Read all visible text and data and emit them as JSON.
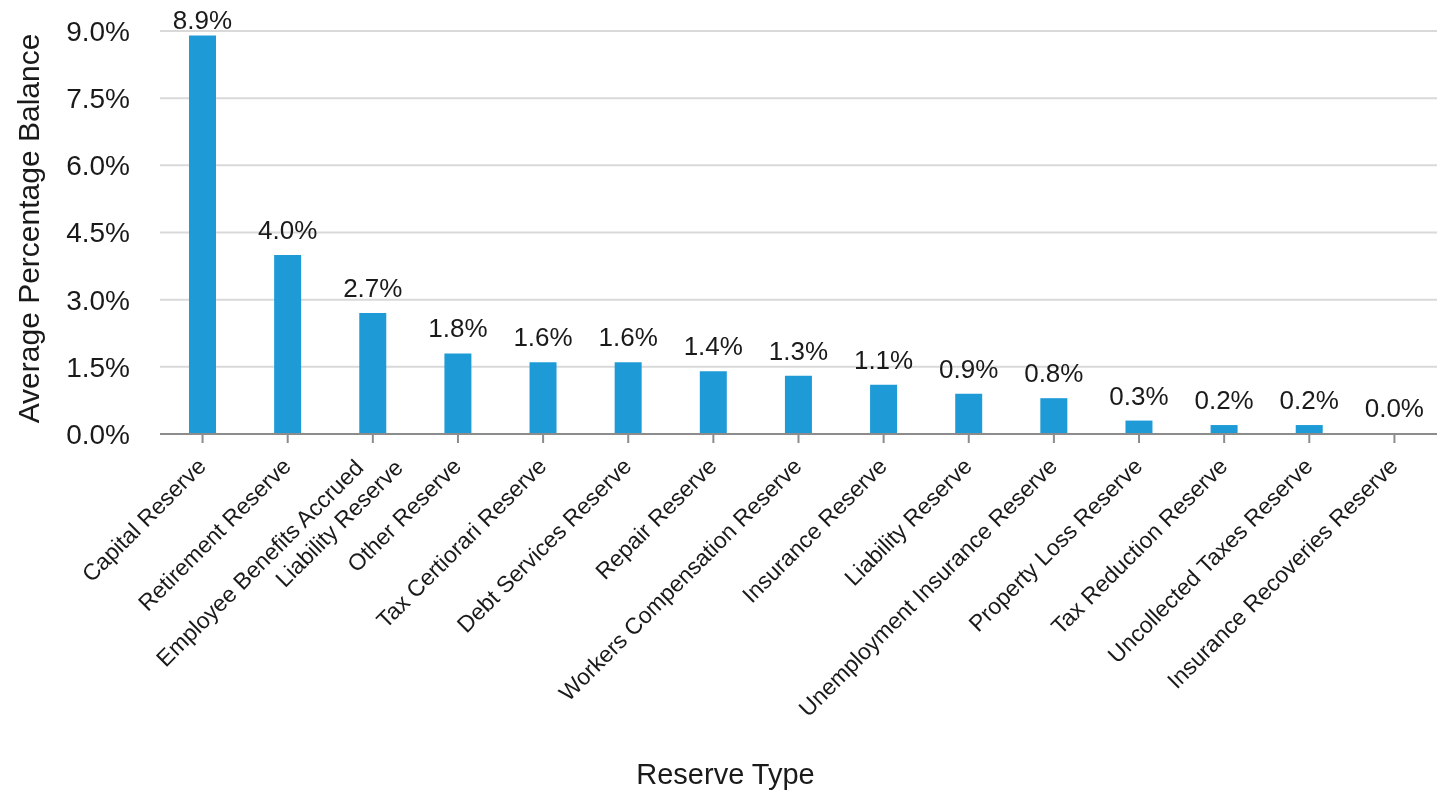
{
  "chart_data": {
    "type": "bar",
    "xlabel": "Reserve Type",
    "ylabel": "Average Percentage Balance",
    "categories": [
      "Capital Reserve",
      "Retirement Reserve",
      "Employee Benefits Accrued\nLiability Reserve",
      "Other Reserve",
      "Tax Certiorari Reserve",
      "Debt Services Reserve",
      "Repair Reserve",
      "Workers Compensation Reserve",
      "Insurance Reserve",
      "Liability Reserve",
      "Unemployment Insurance Reserve",
      "Property Loss Reserve",
      "Tax Reduction Reserve",
      "Uncollected Taxes Reserve",
      "Insurance Recoveries Reserve"
    ],
    "values": [
      8.9,
      4.0,
      2.7,
      1.8,
      1.6,
      1.6,
      1.4,
      1.3,
      1.1,
      0.9,
      0.8,
      0.3,
      0.2,
      0.2,
      0.02
    ],
    "value_labels": [
      "8.9%",
      "4.0%",
      "2.7%",
      "1.8%",
      "1.6%",
      "1.6%",
      "1.4%",
      "1.3%",
      "1.1%",
      "0.9%",
      "0.8%",
      "0.3%",
      "0.2%",
      "0.2%",
      "0.0%"
    ],
    "color": "#1e9bd7",
    "ylim": [
      0,
      9
    ],
    "yticks": [
      {
        "value": 0,
        "label": "0.0%"
      },
      {
        "value": 1.5,
        "label": "1.5%"
      },
      {
        "value": 3,
        "label": "3.0%"
      },
      {
        "value": 4.5,
        "label": "4.5%"
      },
      {
        "value": 6,
        "label": "6.0%"
      },
      {
        "value": 7.5,
        "label": "7.5%"
      },
      {
        "value": 9,
        "label": "9.0%"
      }
    ],
    "grid": "y"
  }
}
